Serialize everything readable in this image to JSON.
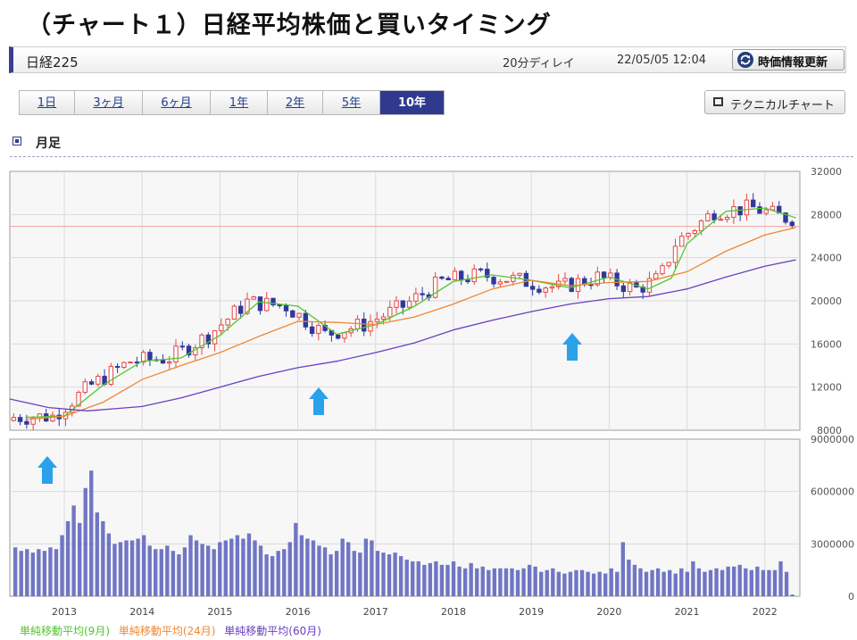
{
  "page_title": "（チャート１）日経平均株価と買いタイミング",
  "info_bar": {
    "ticker": "日経225",
    "delay": "20分ディレイ",
    "timestamp": "22/05/05 12:04",
    "refresh_label": "時価情報更新"
  },
  "tabs": [
    {
      "label": "1日"
    },
    {
      "label": "3ヶ月"
    },
    {
      "label": "6ヶ月"
    },
    {
      "label": "1年"
    },
    {
      "label": "2年"
    },
    {
      "label": "5年"
    },
    {
      "label": "10年",
      "active": true
    }
  ],
  "tech_chart_label": "テクニカルチャート",
  "period_label": "月足",
  "legend": {
    "ma9": "単純移動平均(9月)",
    "ma24": "単純移動平均(24月)",
    "ma60": "単純移動平均(60月)"
  },
  "colors": {
    "ma9": "#52c62e",
    "ma24": "#ee8830",
    "ma60": "#6a3fc0",
    "up_candle": "#e84545",
    "down_candle": "#30389c",
    "volume": "#7076c4",
    "arrow": "#2aa2ea",
    "price_line": "#f2a2a2"
  },
  "chart_data": [
    {
      "type": "candlestick",
      "title": "",
      "x_tick_labels": [
        "2013",
        "2014",
        "2015",
        "2016",
        "2017",
        "2018",
        "2019",
        "2020",
        "2021",
        "2022"
      ],
      "y_tick_labels": [
        "32000",
        "28000",
        "24000",
        "20000",
        "16000",
        "12000",
        "8000"
      ],
      "ylim": [
        8000,
        32000
      ],
      "grid": true,
      "current_price_line": 26900,
      "ohlc_monthly": [],
      "series": [
        {
          "name": "単純移動平均(9月)",
          "points": [
            [
              2012.5,
              9200
            ],
            [
              2013.0,
              9300
            ],
            [
              2013.5,
              12200
            ],
            [
              2014.0,
              14400
            ],
            [
              2014.5,
              14700
            ],
            [
              2015.0,
              16800
            ],
            [
              2015.5,
              19900
            ],
            [
              2016.0,
              19500
            ],
            [
              2016.5,
              16900
            ],
            [
              2017.0,
              17800
            ],
            [
              2017.5,
              19500
            ],
            [
              2018.0,
              21800
            ],
            [
              2018.5,
              22400
            ],
            [
              2019.0,
              21900
            ],
            [
              2019.5,
              21200
            ],
            [
              2020.0,
              22200
            ],
            [
              2020.5,
              21100
            ],
            [
              2020.8,
              22100
            ],
            [
              2021.0,
              25300
            ],
            [
              2021.5,
              28300
            ],
            [
              2022.0,
              28600
            ],
            [
              2022.4,
              27700
            ]
          ]
        },
        {
          "name": "単純移動平均(24月)",
          "points": [
            [
              2012.5,
              9000
            ],
            [
              2013.0,
              9300
            ],
            [
              2013.5,
              10600
            ],
            [
              2014.0,
              12700
            ],
            [
              2014.5,
              14000
            ],
            [
              2015.0,
              15200
            ],
            [
              2015.5,
              16700
            ],
            [
              2016.0,
              18100
            ],
            [
              2016.5,
              18000
            ],
            [
              2017.0,
              17800
            ],
            [
              2017.5,
              18500
            ],
            [
              2018.0,
              19700
            ],
            [
              2018.5,
              21100
            ],
            [
              2019.0,
              21900
            ],
            [
              2019.5,
              21400
            ],
            [
              2020.0,
              21700
            ],
            [
              2020.5,
              21800
            ],
            [
              2021.0,
              22700
            ],
            [
              2021.5,
              24600
            ],
            [
              2022.0,
              26100
            ],
            [
              2022.4,
              26800
            ]
          ]
        },
        {
          "name": "単純移動平均(60月)",
          "points": [
            [
              2012.3,
              10900
            ],
            [
              2012.8,
              10100
            ],
            [
              2013.3,
              9800
            ],
            [
              2014.0,
              10200
            ],
            [
              2014.5,
              11000
            ],
            [
              2015.0,
              12000
            ],
            [
              2015.5,
              13000
            ],
            [
              2016.0,
              13800
            ],
            [
              2016.5,
              14400
            ],
            [
              2017.0,
              15200
            ],
            [
              2017.5,
              16100
            ],
            [
              2018.0,
              17300
            ],
            [
              2018.5,
              18200
            ],
            [
              2019.0,
              19000
            ],
            [
              2019.5,
              19700
            ],
            [
              2020.0,
              20200
            ],
            [
              2020.5,
              20400
            ],
            [
              2021.0,
              21100
            ],
            [
              2021.5,
              22200
            ],
            [
              2022.0,
              23200
            ],
            [
              2022.4,
              23800
            ]
          ]
        }
      ]
    },
    {
      "type": "bar",
      "title": "",
      "y_tick_labels": [
        "9000000",
        "6000000",
        "3000000",
        "0"
      ],
      "ylim": [
        0,
        9000000
      ],
      "series": [
        {
          "name": "出来高",
          "values": [
            2800000,
            2600000,
            2700000,
            2500000,
            2700000,
            2600000,
            2800000,
            2700000,
            3500000,
            4300000,
            5200000,
            4200000,
            6200000,
            7200000,
            4800000,
            4300000,
            3600000,
            3000000,
            3100000,
            3200000,
            3200000,
            3300000,
            3500000,
            2900000,
            2700000,
            2700000,
            2900000,
            2600000,
            2400000,
            2800000,
            3500000,
            3200000,
            3000000,
            2900000,
            2700000,
            3100000,
            3200000,
            3300000,
            3500000,
            3300000,
            3600000,
            3200000,
            2900000,
            2400000,
            2300000,
            2600000,
            2700000,
            3100000,
            4200000,
            3500000,
            3300000,
            3200000,
            2900000,
            2800000,
            2400000,
            2600000,
            3300000,
            3100000,
            2600000,
            2500000,
            3300000,
            3200000,
            2600000,
            2500000,
            2400000,
            2500000,
            2300000,
            2100000,
            2000000,
            2000000,
            1800000,
            1900000,
            2000000,
            1800000,
            1800000,
            2000000,
            1700000,
            1600000,
            1900000,
            1600000,
            1700000,
            1500000,
            1600000,
            1600000,
            1600000,
            1600000,
            1500000,
            1600000,
            1800000,
            1700000,
            1400000,
            1500000,
            1600000,
            1400000,
            1300000,
            1400000,
            1500000,
            1500000,
            1400000,
            1300000,
            1400000,
            1300000,
            1600000,
            1400000,
            3100000,
            2100000,
            1800000,
            1600000,
            1400000,
            1500000,
            1600000,
            1400000,
            1500000,
            1300000,
            1600000,
            1400000,
            2000000,
            1600000,
            1400000,
            1500000,
            1600000,
            1500000,
            1700000,
            1700000,
            1800000,
            1600000,
            1500000,
            1700000,
            1500000,
            1500000,
            1500000,
            2000000,
            1400000,
            100000
          ]
        }
      ]
    }
  ],
  "x_axis_labels": [
    "2013",
    "2014",
    "2015",
    "2016",
    "2017",
    "2018",
    "2019",
    "2020",
    "2021",
    "2022"
  ],
  "price_axis_labels": [
    "32000",
    "28000",
    "24000",
    "20000",
    "16000",
    "12000",
    "8000"
  ],
  "volume_axis_labels": [
    "9000000",
    "6000000",
    "3000000",
    "0"
  ]
}
